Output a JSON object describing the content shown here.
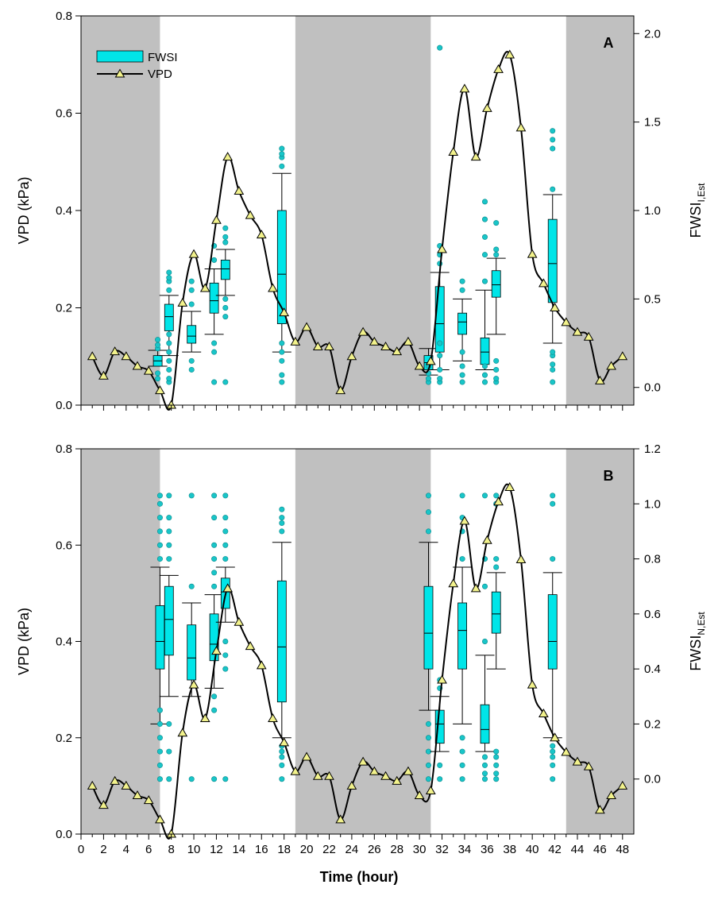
{
  "figure": {
    "xlabel": "Time (hour)"
  },
  "colors": {
    "night": "#c0c0c0",
    "box": "#00e5e8",
    "box_stroke": "#000000",
    "outlier": "#19c5c8",
    "line": "#000000",
    "marker": "#f2f28c"
  },
  "chart_data": [
    {
      "type": "line",
      "panel_label": "A",
      "legend": {
        "placement": "top-left",
        "entries": [
          "FWSI",
          "VPD"
        ]
      },
      "xlim": [
        0,
        49
      ],
      "xticks": [
        0,
        2,
        4,
        6,
        8,
        10,
        12,
        14,
        16,
        18,
        20,
        22,
        24,
        26,
        28,
        30,
        32,
        34,
        36,
        38,
        40,
        42,
        44,
        46,
        48
      ],
      "night_periods": [
        [
          0,
          7
        ],
        [
          19,
          31
        ],
        [
          43,
          49
        ]
      ],
      "y_left": {
        "label": "VPD (kPa)",
        "lim": [
          0,
          0.8
        ],
        "ticks": [
          "0.0",
          "0.2",
          "0.4",
          "0.6",
          "0.8"
        ]
      },
      "y_right": {
        "label_main": "FWSI",
        "label_sub": "I,Est",
        "lim": [
          -0.1,
          2.1
        ],
        "ticks": [
          "0.0",
          "0.5",
          "1.0",
          "1.5",
          "2.0"
        ]
      },
      "series": [
        {
          "name": "VPD",
          "x": [
            1,
            2,
            3,
            4,
            5,
            6,
            7,
            8,
            9,
            10,
            11,
            12,
            13,
            14,
            15,
            16,
            17,
            18,
            19,
            20,
            21,
            22,
            23,
            24,
            25,
            26,
            27,
            28,
            29,
            30,
            31,
            32,
            33,
            34,
            35,
            36,
            37,
            38,
            39,
            40,
            41,
            42,
            43,
            44,
            45,
            46,
            47,
            48
          ],
          "y": [
            0.1,
            0.06,
            0.11,
            0.1,
            0.08,
            0.07,
            0.03,
            0.0,
            0.21,
            0.31,
            0.24,
            0.38,
            0.51,
            0.44,
            0.39,
            0.35,
            0.24,
            0.19,
            0.13,
            0.16,
            0.12,
            0.12,
            0.03,
            0.1,
            0.15,
            0.13,
            0.12,
            0.11,
            0.13,
            0.08,
            0.09,
            0.32,
            0.52,
            0.65,
            0.51,
            0.61,
            0.69,
            0.72,
            0.57,
            0.31,
            0.25,
            0.2,
            0.17,
            0.15,
            0.14,
            0.05,
            0.08,
            0.1
          ]
        },
        {
          "name": "FWSI",
          "boxes": [
            {
              "x": 6.8,
              "whisker_low": 0.12,
              "q1": 0.12,
              "median": 0.15,
              "q3": 0.18,
              "whisker_high": 0.21,
              "outliers": [
                0.05,
                0.08,
                0.22,
                0.24,
                0.27
              ]
            },
            {
              "x": 7.8,
              "whisker_low": 0.18,
              "q1": 0.32,
              "median": 0.4,
              "q3": 0.47,
              "whisker_high": 0.52,
              "outliers": [
                0.03,
                0.05,
                0.1,
                0.15,
                0.2,
                0.25,
                0.3,
                0.55,
                0.6,
                0.62,
                0.65
              ]
            },
            {
              "x": 9.8,
              "whisker_low": 0.2,
              "q1": 0.25,
              "median": 0.29,
              "q3": 0.35,
              "whisker_high": 0.43,
              "outliers": [
                0.1,
                0.15,
                0.47,
                0.55,
                0.6
              ]
            },
            {
              "x": 11.8,
              "whisker_low": 0.3,
              "q1": 0.42,
              "median": 0.49,
              "q3": 0.59,
              "whisker_high": 0.67,
              "outliers": [
                0.03,
                0.2,
                0.25,
                0.72,
                0.8
              ]
            },
            {
              "x": 12.8,
              "whisker_low": 0.52,
              "q1": 0.61,
              "median": 0.67,
              "q3": 0.72,
              "whisker_high": 0.78,
              "outliers": [
                0.03,
                0.4,
                0.45,
                0.5,
                0.82,
                0.85,
                0.9
              ]
            },
            {
              "x": 17.8,
              "whisker_low": 0.2,
              "q1": 0.36,
              "median": 0.64,
              "q3": 1.0,
              "whisker_high": 1.21,
              "outliers": [
                0.03,
                0.07,
                0.15,
                0.2,
                0.25,
                1.25,
                1.3,
                1.32,
                1.35
              ]
            },
            {
              "x": 30.8,
              "whisker_low": 0.07,
              "q1": 0.1,
              "median": 0.14,
              "q3": 0.18,
              "whisker_high": 0.22,
              "outliers": [
                0.03,
                0.05,
                0.08,
                0.12
              ]
            },
            {
              "x": 31.8,
              "whisker_low": 0.1,
              "q1": 0.2,
              "median": 0.36,
              "q3": 0.57,
              "whisker_high": 0.65,
              "outliers": [
                0.03,
                0.05,
                0.1,
                0.18,
                0.25,
                0.7,
                0.75,
                0.8,
                1.92
              ]
            },
            {
              "x": 33.8,
              "whisker_low": 0.15,
              "q1": 0.3,
              "median": 0.37,
              "q3": 0.42,
              "whisker_high": 0.5,
              "outliers": [
                0.03,
                0.07,
                0.12,
                0.2,
                0.55,
                0.6
              ]
            },
            {
              "x": 35.8,
              "whisker_low": 0.1,
              "q1": 0.13,
              "median": 0.2,
              "q3": 0.28,
              "whisker_high": 0.55,
              "outliers": [
                0.03,
                0.07,
                0.12,
                0.6,
                0.75,
                0.85,
                0.95,
                1.05
              ]
            },
            {
              "x": 36.8,
              "whisker_low": 0.3,
              "q1": 0.51,
              "median": 0.58,
              "q3": 0.66,
              "whisker_high": 0.73,
              "outliers": [
                0.03,
                0.05,
                0.1,
                0.15,
                0.75,
                0.78,
                0.93
              ]
            },
            {
              "x": 41.8,
              "whisker_low": 0.25,
              "q1": 0.48,
              "median": 0.7,
              "q3": 0.95,
              "whisker_high": 1.09,
              "outliers": [
                0.03,
                0.1,
                0.13,
                0.18,
                0.2,
                1.12,
                1.35,
                1.4,
                1.45
              ]
            }
          ]
        }
      ]
    },
    {
      "type": "line",
      "panel_label": "B",
      "xlim": [
        0,
        49
      ],
      "xticks": [
        0,
        2,
        4,
        6,
        8,
        10,
        12,
        14,
        16,
        18,
        20,
        22,
        24,
        26,
        28,
        30,
        32,
        34,
        36,
        38,
        40,
        42,
        44,
        46,
        48
      ],
      "xtick_labels": [
        "0",
        "2",
        "4",
        "6",
        "8",
        "10",
        "12",
        "14",
        "16",
        "18",
        "20",
        "22",
        "24",
        "26",
        "28",
        "30",
        "32",
        "34",
        "36",
        "38",
        "40",
        "42",
        "44",
        "46",
        "48"
      ],
      "night_periods": [
        [
          0,
          7
        ],
        [
          19,
          31
        ],
        [
          43,
          49
        ]
      ],
      "y_left": {
        "label": "VPD (kPa)",
        "lim": [
          0,
          0.8
        ],
        "ticks": [
          "0.0",
          "0.2",
          "0.4",
          "0.6",
          "0.8"
        ]
      },
      "y_right": {
        "label_main": "FWSI",
        "label_sub": "N,Est",
        "lim": [
          -0.2,
          1.2
        ],
        "ticks": [
          "0.0",
          "0.2",
          "0.4",
          "0.6",
          "0.8",
          "1.0",
          "1.2"
        ]
      },
      "series": [
        {
          "name": "VPD",
          "x": [
            1,
            2,
            3,
            4,
            5,
            6,
            7,
            8,
            9,
            10,
            11,
            12,
            13,
            14,
            15,
            16,
            17,
            18,
            19,
            20,
            21,
            22,
            23,
            24,
            25,
            26,
            27,
            28,
            29,
            30,
            31,
            32,
            33,
            34,
            35,
            36,
            37,
            38,
            39,
            40,
            41,
            42,
            43,
            44,
            45,
            46,
            47,
            48
          ],
          "y": [
            0.1,
            0.06,
            0.11,
            0.1,
            0.08,
            0.07,
            0.03,
            0.0,
            0.21,
            0.31,
            0.24,
            0.38,
            0.51,
            0.44,
            0.39,
            0.35,
            0.24,
            0.19,
            0.13,
            0.16,
            0.12,
            0.12,
            0.03,
            0.1,
            0.15,
            0.13,
            0.12,
            0.11,
            0.13,
            0.08,
            0.09,
            0.32,
            0.52,
            0.65,
            0.51,
            0.61,
            0.69,
            0.72,
            0.57,
            0.31,
            0.25,
            0.2,
            0.17,
            0.15,
            0.14,
            0.05,
            0.08,
            0.1
          ]
        },
        {
          "name": "FWSI",
          "boxes": [
            {
              "x": 7.0,
              "whisker_low": 0.2,
              "q1": 0.4,
              "median": 0.5,
              "q3": 0.63,
              "whisker_high": 0.77,
              "outliers": [
                0.0,
                0.05,
                0.1,
                0.15,
                0.2,
                0.25,
                0.8,
                0.85,
                0.9,
                0.95,
                1.0,
                1.03
              ]
            },
            {
              "x": 7.8,
              "whisker_low": 0.3,
              "q1": 0.45,
              "median": 0.58,
              "q3": 0.7,
              "whisker_high": 0.74,
              "outliers": [
                0.0,
                0.1,
                0.2,
                0.8,
                0.85,
                0.9,
                0.95,
                1.03
              ]
            },
            {
              "x": 9.8,
              "whisker_low": 0.3,
              "q1": 0.36,
              "median": 0.44,
              "q3": 0.56,
              "whisker_high": 0.64,
              "outliers": [
                0.0,
                0.7,
                1.03
              ]
            },
            {
              "x": 11.8,
              "whisker_low": 0.33,
              "q1": 0.43,
              "median": 0.49,
              "q3": 0.6,
              "whisker_high": 0.67,
              "outliers": [
                0.0,
                0.25,
                0.3,
                0.7,
                0.75,
                0.8,
                0.85,
                0.95,
                1.03
              ]
            },
            {
              "x": 12.8,
              "whisker_low": 0.57,
              "q1": 0.62,
              "median": 0.68,
              "q3": 0.73,
              "whisker_high": 0.77,
              "outliers": [
                0.0,
                0.4,
                0.45,
                0.5,
                0.8,
                0.85,
                0.9,
                0.95,
                1.03
              ]
            },
            {
              "x": 17.8,
              "whisker_low": 0.15,
              "q1": 0.28,
              "median": 0.48,
              "q3": 0.72,
              "whisker_high": 0.86,
              "outliers": [
                0.0,
                0.05,
                0.08,
                0.1,
                0.12,
                0.9,
                0.93,
                0.95,
                0.98
              ]
            },
            {
              "x": 30.8,
              "whisker_low": 0.25,
              "q1": 0.4,
              "median": 0.53,
              "q3": 0.7,
              "whisker_high": 0.86,
              "outliers": [
                0.0,
                0.05,
                0.1,
                0.15,
                0.2,
                0.9,
                0.97,
                1.03
              ]
            },
            {
              "x": 31.8,
              "whisker_low": 0.1,
              "q1": 0.13,
              "median": 0.2,
              "q3": 0.25,
              "whisker_high": 0.3,
              "outliers": [
                0.0,
                0.05,
                0.33,
                0.36
              ]
            },
            {
              "x": 33.8,
              "whisker_low": 0.2,
              "q1": 0.4,
              "median": 0.54,
              "q3": 0.64,
              "whisker_high": 0.77,
              "outliers": [
                0.0,
                0.05,
                0.1,
                0.15,
                0.8,
                0.9,
                0.95,
                1.03
              ]
            },
            {
              "x": 35.8,
              "whisker_low": 0.1,
              "q1": 0.13,
              "median": 0.18,
              "q3": 0.27,
              "whisker_high": 0.45,
              "outliers": [
                0.0,
                0.02,
                0.05,
                0.08,
                0.5,
                0.7,
                0.8,
                1.03
              ]
            },
            {
              "x": 36.8,
              "whisker_low": 0.4,
              "q1": 0.53,
              "median": 0.6,
              "q3": 0.68,
              "whisker_high": 0.75,
              "outliers": [
                0.0,
                0.02,
                0.05,
                0.08,
                0.1,
                0.77,
                0.8,
                1.0,
                1.03
              ]
            },
            {
              "x": 41.8,
              "whisker_low": 0.15,
              "q1": 0.4,
              "median": 0.5,
              "q3": 0.67,
              "whisker_high": 0.75,
              "outliers": [
                0.0,
                0.05,
                0.08,
                0.1,
                0.12,
                0.8,
                1.0,
                1.03
              ]
            }
          ]
        }
      ]
    }
  ]
}
